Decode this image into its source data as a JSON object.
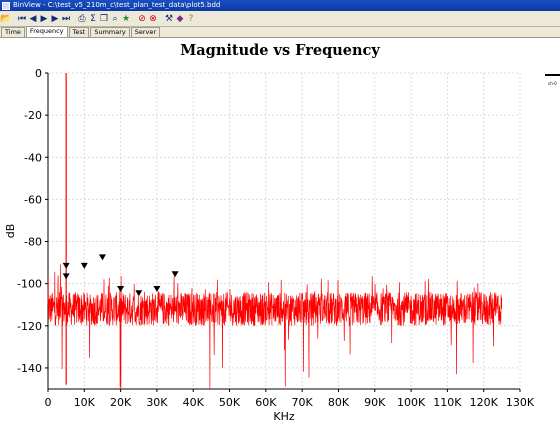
{
  "window": {
    "title": "BinView - C:\\test_v5_210m_c\\test_plan_test_data\\plot5.bdd"
  },
  "toolbar": {
    "icons": [
      "open-icon",
      "first-icon",
      "prev-icon",
      "play-icon",
      "next-icon",
      "last-icon",
      "print-icon",
      "sum-icon",
      "copy-icon",
      "zoom-icon",
      "marker-icon",
      "stop-icon",
      "cancel-icon",
      "tools-icon",
      "paint-icon",
      "help-icon"
    ]
  },
  "tabs": [
    "Time",
    "Frequency",
    "Test",
    "Summary",
    "Server"
  ],
  "active_tab": "Frequency",
  "legend": {
    "label": "ch-0"
  },
  "chart_data": {
    "type": "line",
    "title": "Magnitude vs Frequency",
    "xlabel": "KHz",
    "ylabel": "dB",
    "xlim": [
      0,
      130
    ],
    "ylim": [
      -150,
      0
    ],
    "x_ticks": [
      "0",
      "10K",
      "20K",
      "30K",
      "40K",
      "50K",
      "60K",
      "70K",
      "80K",
      "90K",
      "100K",
      "110K",
      "120K",
      "130K"
    ],
    "y_ticks": [
      "0",
      "-20",
      "-40",
      "-60",
      "-80",
      "-100",
      "-120",
      "-140"
    ],
    "grid": true,
    "series": [
      {
        "name": "ch-0",
        "color": "#ff0000",
        "x_range": [
          0,
          125
        ],
        "noise_floor_db": -112,
        "noise_spread_db": 8,
        "fundamental": {
          "x": 5,
          "y": 0
        }
      }
    ],
    "harmonic_markers": [
      {
        "x": 5,
        "y": -92
      },
      {
        "x": 5,
        "y": -97
      },
      {
        "x": 10,
        "y": -92
      },
      {
        "x": 15,
        "y": -88
      },
      {
        "x": 20,
        "y": -103
      },
      {
        "x": 25,
        "y": -105
      },
      {
        "x": 30,
        "y": -103
      },
      {
        "x": 35,
        "y": -96
      }
    ]
  }
}
